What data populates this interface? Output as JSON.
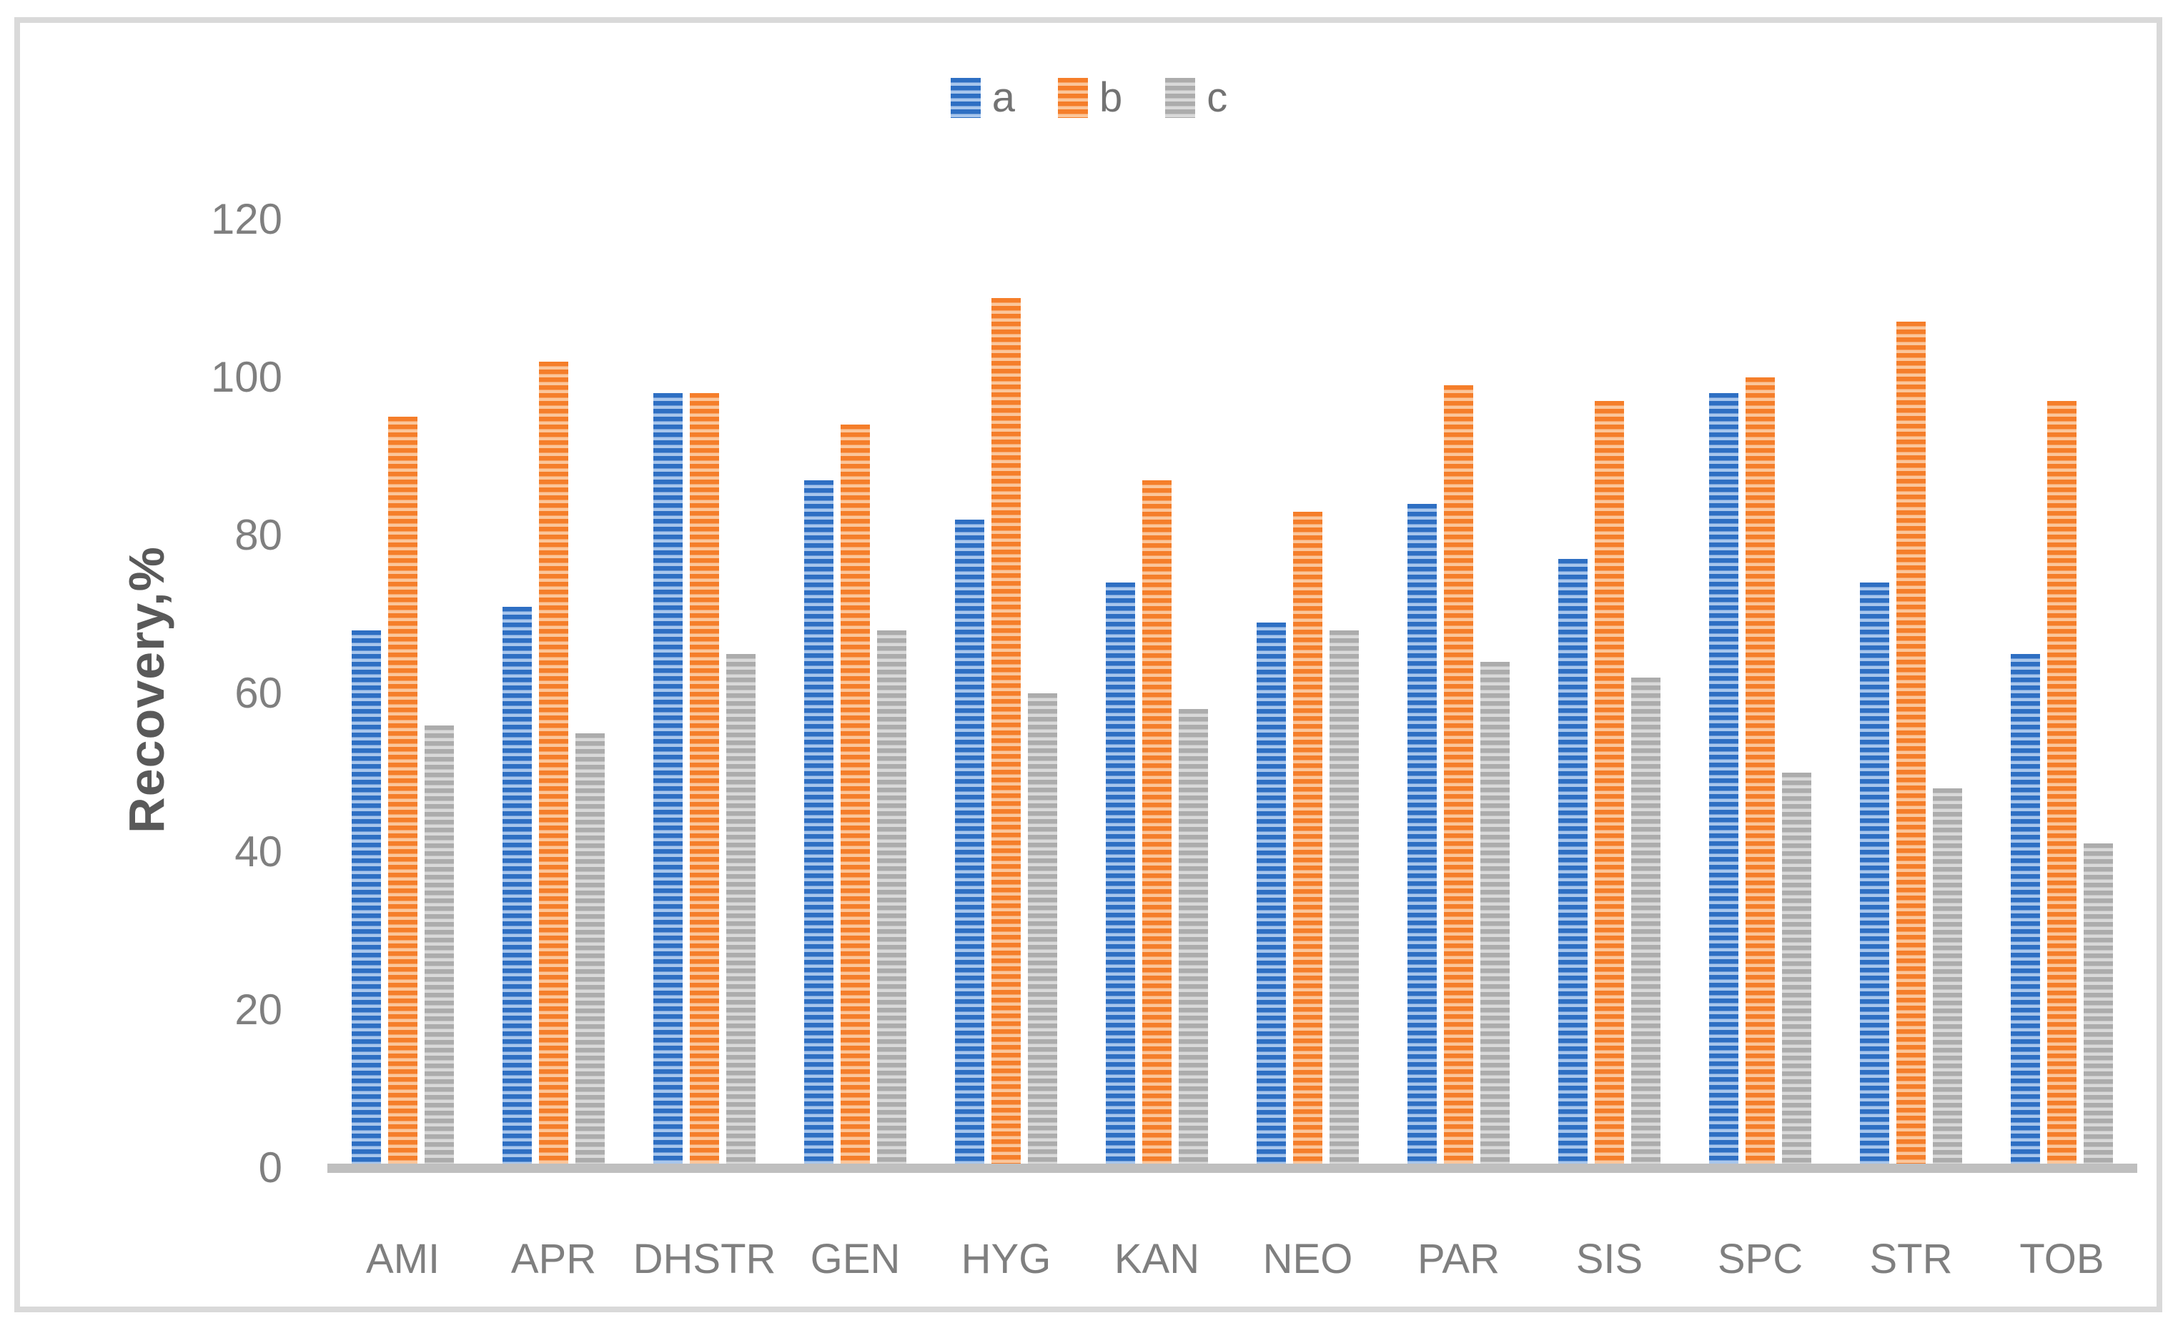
{
  "figure": {
    "background_color": "#FFFFFF",
    "border_color": "#D9D9D9",
    "axis_line_color": "#BFBFBF",
    "tick_label_color": "#7F7F7F",
    "axis_title_color": "#595959"
  },
  "legend": {
    "position": "top-center",
    "items": [
      {
        "label": "a",
        "color": "#2E6FC3",
        "tint": "#A8C6EC"
      },
      {
        "label": "b",
        "color": "#F57E2A",
        "tint": "#FBC69B"
      },
      {
        "label": "c",
        "color": "#ACACAC",
        "tint": "#D9D9D9"
      }
    ]
  },
  "y_axis": {
    "title": "Recovery,%",
    "ticks": [
      0,
      20,
      40,
      60,
      80,
      100,
      120
    ]
  },
  "chart_data": {
    "type": "bar",
    "title": "",
    "xlabel": "",
    "ylabel": "Recovery,%",
    "ylim": [
      0,
      120
    ],
    "grid": false,
    "legend_position": "top-center",
    "bar_pattern": "horizontal-stripes",
    "categories": [
      "AMI",
      "APR",
      "DHSTR",
      "GEN",
      "HYG",
      "KAN",
      "NEO",
      "PAR",
      "SIS",
      "SPC",
      "STR",
      "TOB"
    ],
    "series": [
      {
        "name": "a",
        "color": "#2E6FC3",
        "values": [
          68,
          71,
          98,
          87,
          82,
          74,
          69,
          84,
          77,
          98,
          74,
          65
        ]
      },
      {
        "name": "b",
        "color": "#F57E2A",
        "values": [
          95,
          102,
          98,
          94,
          110,
          87,
          83,
          99,
          97,
          100,
          107,
          97
        ]
      },
      {
        "name": "c",
        "color": "#ACACAC",
        "values": [
          56,
          55,
          65,
          68,
          60,
          58,
          68,
          64,
          62,
          50,
          48,
          41
        ]
      }
    ]
  }
}
